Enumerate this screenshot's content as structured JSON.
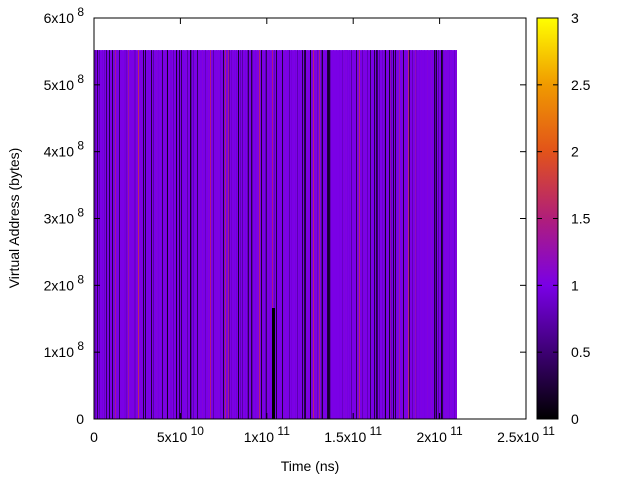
{
  "chart_data": {
    "type": "heatmap",
    "title": "",
    "xlabel": "Time (ns)",
    "ylabel": "Virtual Address (bytes)",
    "xlim": [
      0,
      250000000000
    ],
    "ylim": [
      0,
      600000000
    ],
    "data_extent": {
      "x": [
        0,
        210000000000
      ],
      "y": [
        0,
        552000000
      ]
    },
    "x_ticks": [
      {
        "value": 0,
        "mantissa": "0",
        "exp": ""
      },
      {
        "value": 50000000000,
        "mantissa": "5x10",
        "exp": "10"
      },
      {
        "value": 100000000000,
        "mantissa": "1x10",
        "exp": "11"
      },
      {
        "value": 150000000000,
        "mantissa": "1.5x10",
        "exp": "11"
      },
      {
        "value": 200000000000,
        "mantissa": "2x10",
        "exp": "11"
      },
      {
        "value": 250000000000,
        "mantissa": "2.5x10",
        "exp": "11"
      }
    ],
    "y_ticks": [
      {
        "value": 0,
        "mantissa": "0",
        "exp": ""
      },
      {
        "value": 100000000,
        "mantissa": "1x10",
        "exp": "8"
      },
      {
        "value": 200000000,
        "mantissa": "2x10",
        "exp": "8"
      },
      {
        "value": 300000000,
        "mantissa": "3x10",
        "exp": "8"
      },
      {
        "value": 400000000,
        "mantissa": "4x10",
        "exp": "8"
      },
      {
        "value": 500000000,
        "mantissa": "5x10",
        "exp": "8"
      },
      {
        "value": 600000000,
        "mantissa": "6x10",
        "exp": "8"
      }
    ],
    "colorbar": {
      "range": [
        0,
        3
      ],
      "ticks": [
        "0",
        "0.5",
        "1",
        "1.5",
        "2",
        "2.5",
        "3"
      ],
      "palette": "black-purple-red-yellow",
      "stops": [
        {
          "v": 0.0,
          "color": "#000000"
        },
        {
          "v": 0.333,
          "color": "#7a00e6"
        },
        {
          "v": 0.5,
          "color": "#b01e7a"
        },
        {
          "v": 0.667,
          "color": "#e2531a"
        },
        {
          "v": 0.833,
          "color": "#f09a00"
        },
        {
          "v": 1.0,
          "color": "#ffff00"
        }
      ]
    },
    "dominant_value": 1,
    "grid": false,
    "legend": "colorbar-right"
  }
}
